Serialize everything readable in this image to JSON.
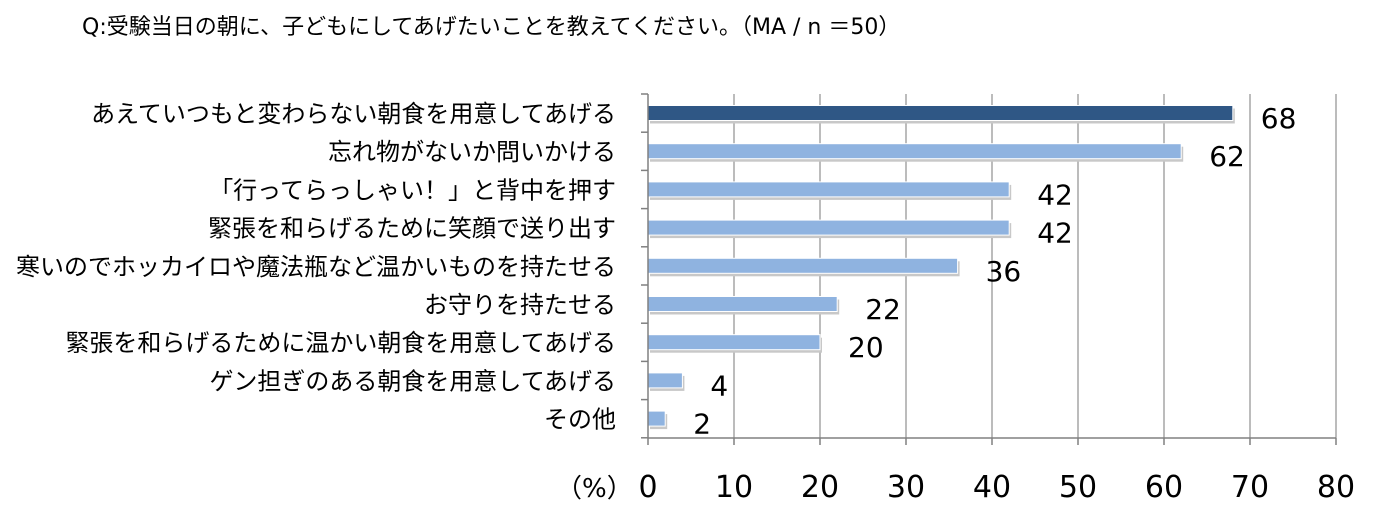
{
  "chart_data": {
    "type": "bar",
    "orientation": "horizontal",
    "title": "Q:受験当日の朝に、子どもにしてあげたいことを教えてください。（MA / n ＝50）",
    "categories": [
      "あえていつもと変わらない朝食を用意してあげる",
      "忘れ物がないか問いかける",
      "「行ってらっしゃい！」と背中を押す",
      "緊張を和らげるために笑顔で送り出す",
      "寒いのでホッカイロや魔法瓶など温かいものを持たせる",
      "お守りを持たせる",
      "緊張を和らげるために温かい朝食を用意してあげる",
      "ゲン担ぎのある朝食を用意してあげる",
      "その他"
    ],
    "values": [
      68,
      62,
      42,
      42,
      36,
      22,
      20,
      4,
      2
    ],
    "value_labels": [
      "68",
      "62",
      "42",
      "42",
      "36",
      "22",
      "20",
      "4",
      "2"
    ],
    "xlim": [
      0,
      80
    ],
    "ticks": [
      0,
      10,
      20,
      30,
      40,
      50,
      60,
      70,
      80
    ],
    "tick_labels": [
      "0",
      "10",
      "20",
      "30",
      "40",
      "50",
      "60",
      "70",
      "80"
    ],
    "unit_label": "（%）",
    "grid": true,
    "highlight_index": 0,
    "colors": {
      "highlight": "#2f5785",
      "bar": "#8fb3e0",
      "grid": "#a6a6a6",
      "axis": "#808080",
      "shadow": "#c8c8c8"
    }
  }
}
